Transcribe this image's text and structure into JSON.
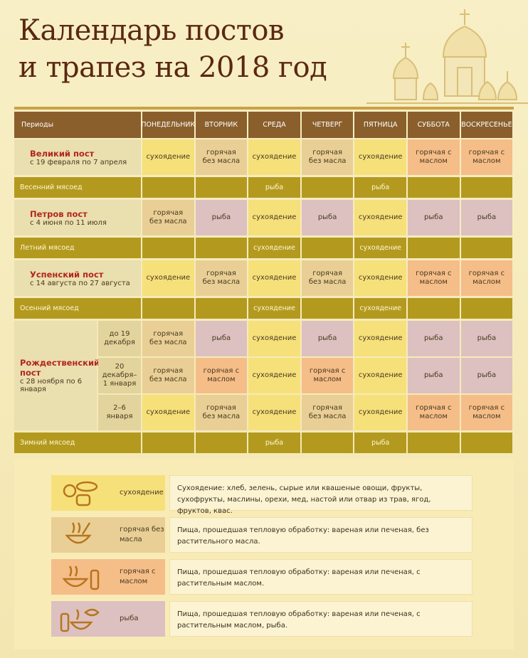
{
  "header": {
    "title_line1": "Календарь постов",
    "title_line2": "и трапез на 2018 год"
  },
  "table": {
    "columns": [
      "Периоды",
      "ПОНЕДЕЛЬНИК",
      "ВТОРНИК",
      "СРЕДА",
      "ЧЕТВЕРГ",
      "ПЯТНИЦА",
      "СУББОТА",
      "ВОСКРЕСЕНЬЕ"
    ],
    "myasoed_color": "#b39a1f",
    "period_color": "#eadfae",
    "rows": [
      {
        "title": "Великий пост",
        "dates": "с 19 февраля по 7 апреля",
        "cells": [
          "сухоядение",
          "горячая без масла",
          "сухоядение",
          "горячая без масла",
          "сухоядение",
          "горячая с маслом",
          "горячая с маслом"
        ]
      },
      {
        "label": "Весенний мясоед",
        "cells": [
          null,
          null,
          "рыба",
          null,
          "рыба",
          null,
          null
        ]
      },
      {
        "title": "Петров пост",
        "dates": "с 4 июня по 11 июля",
        "cells": [
          "горячая без масла",
          "рыба",
          "сухоядение",
          "рыба",
          "сухоядение",
          "рыба",
          "рыба"
        ]
      },
      {
        "label": "Летний мясоед",
        "cells": [
          null,
          null,
          "сухоядение",
          null,
          "сухоядение",
          null,
          null
        ]
      },
      {
        "title": "Успенский пост",
        "dates": "с 14 августа по 27 августа",
        "cells": [
          "сухоядение",
          "горячая без масла",
          "сухоядение",
          "горячая без масла",
          "сухоядение",
          "горячая с маслом",
          "горячая с маслом"
        ]
      },
      {
        "label": "Осенний мясоед",
        "cells": [
          null,
          null,
          "сухоядение",
          null,
          "сухоядение",
          null,
          null
        ]
      },
      {
        "title": "Рождественский пост",
        "dates": "с 28 ноября по 6 января",
        "subrows": [
          {
            "label": "до 19 декабря",
            "cells": [
              "горячая без масла",
              "рыба",
              "сухоядение",
              "рыба",
              "сухоядение",
              "рыба",
              "рыба"
            ]
          },
          {
            "label": "20 декабря–1 января",
            "cells": [
              "горячая без масла",
              "горячая с маслом",
              "сухоядение",
              "горячая с маслом",
              "сухоядение",
              "рыба",
              "рыба"
            ]
          },
          {
            "label": "2–6 января",
            "cells": [
              "сухоядение",
              "горячая без масла",
              "сухоядение",
              "горячая без масла",
              "сухоядение",
              "горячая с маслом",
              "горячая с маслом"
            ]
          }
        ]
      },
      {
        "label": "Зимний мясоед",
        "cells": [
          null,
          null,
          "рыба",
          null,
          "рыба",
          null,
          null
        ]
      }
    ]
  },
  "legend": [
    {
      "label": "сухоядение",
      "color": "#f6e07a",
      "description": "Сухоядение: хлеб, зелень, сырые или квашеные овощи, фрукты, сухофрукты, маслины, орехи, мед, настой или отвар из трав, ягод, фруктов, квас."
    },
    {
      "label": "горячая без масла",
      "color": "#e9cf95",
      "description": "Пища, прошедшая тепловую обработку: вареная или печеная, без растительного масла."
    },
    {
      "label": "горячая с маслом",
      "color": "#f5bd88",
      "description": "Пища, прошедшая тепловую обработку: вареная или печеная, с растительным маслом."
    },
    {
      "label": "рыба",
      "color": "#dcc1c0",
      "description": "Пища, прошедшая тепловую обработку: вареная или печеная, с растительным маслом, рыба."
    }
  ]
}
